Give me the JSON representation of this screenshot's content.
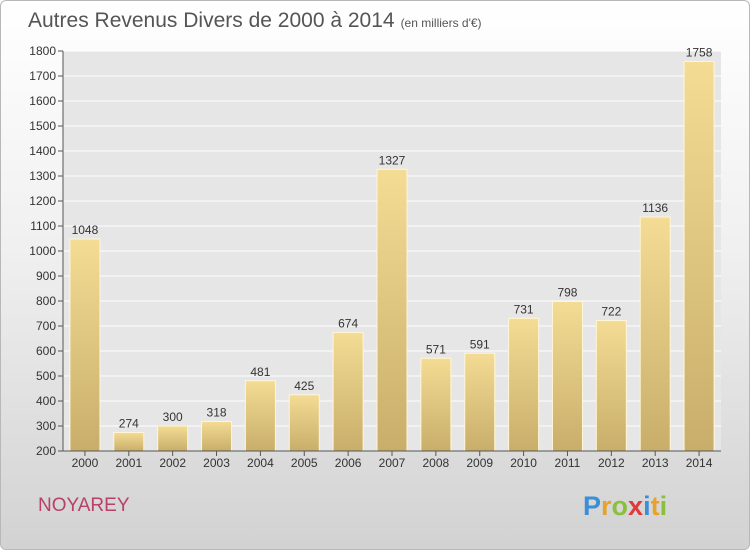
{
  "title": "Autres Revenus Divers de 2000 à 2014",
  "subtitle": "(en milliers d'€)",
  "town": "NOYAREY",
  "logo": {
    "letters": [
      "P",
      "r",
      "o",
      "x",
      "i",
      "t",
      "i"
    ],
    "colors": [
      "#3a8fd8",
      "#e8a228",
      "#8ac03c",
      "#e03a3a",
      "#3a8fd8",
      "#e8a228",
      "#8ac03c"
    ]
  },
  "chart_data": {
    "type": "bar",
    "categories": [
      "2000",
      "2001",
      "2002",
      "2003",
      "2004",
      "2005",
      "2006",
      "2007",
      "2008",
      "2009",
      "2010",
      "2011",
      "2012",
      "2013",
      "2014"
    ],
    "values": [
      1048,
      274,
      300,
      318,
      481,
      425,
      674,
      1327,
      571,
      591,
      731,
      798,
      722,
      1136,
      1758
    ],
    "ylim": [
      200,
      1800
    ],
    "yticks": [
      200,
      300,
      400,
      500,
      600,
      700,
      800,
      900,
      1000,
      1100,
      1200,
      1300,
      1400,
      1500,
      1600,
      1700,
      1800
    ],
    "grid": true,
    "bar_color": "#e8cf8a",
    "title": "Autres Revenus Divers de 2000 à 2014",
    "xlabel": "",
    "ylabel": ""
  }
}
